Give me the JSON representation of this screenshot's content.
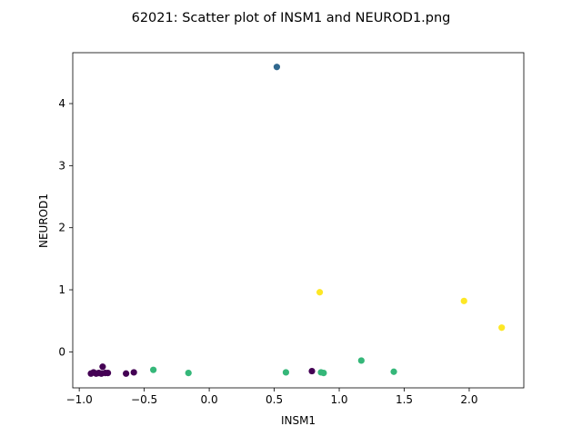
{
  "chart_data": {
    "type": "scatter",
    "title": "62021: Scatter plot of INSM1 and NEUROD1.png",
    "xlabel": "INSM1",
    "ylabel": "NEUROD1",
    "xlim": [
      -1.05,
      2.42
    ],
    "ylim": [
      -0.58,
      4.82
    ],
    "xticks": [
      -1.0,
      -0.5,
      0.0,
      0.5,
      1.0,
      1.5,
      2.0
    ],
    "xtick_labels": [
      "−1.0",
      "−0.5",
      "0.0",
      "0.5",
      "1.0",
      "1.5",
      "2.0"
    ],
    "yticks": [
      0,
      1,
      2,
      3,
      4
    ],
    "ytick_labels": [
      "0",
      "1",
      "2",
      "3",
      "4"
    ],
    "grid": false,
    "colors": {
      "purple": "#440154",
      "blue": "#31688e",
      "green": "#35b779",
      "yellow": "#fde725"
    },
    "points": [
      {
        "x": -0.91,
        "y": -0.35,
        "color": "purple"
      },
      {
        "x": -0.89,
        "y": -0.33,
        "color": "purple"
      },
      {
        "x": -0.87,
        "y": -0.35,
        "color": "purple"
      },
      {
        "x": -0.85,
        "y": -0.34,
        "color": "purple"
      },
      {
        "x": -0.83,
        "y": -0.35,
        "color": "purple"
      },
      {
        "x": -0.82,
        "y": -0.24,
        "color": "purple"
      },
      {
        "x": -0.8,
        "y": -0.34,
        "color": "purple"
      },
      {
        "x": -0.78,
        "y": -0.34,
        "color": "purple"
      },
      {
        "x": -0.64,
        "y": -0.35,
        "color": "purple"
      },
      {
        "x": -0.58,
        "y": -0.33,
        "color": "purple"
      },
      {
        "x": 0.79,
        "y": -0.31,
        "color": "purple"
      },
      {
        "x": 0.52,
        "y": 4.59,
        "color": "blue"
      },
      {
        "x": -0.43,
        "y": -0.29,
        "color": "green"
      },
      {
        "x": -0.16,
        "y": -0.34,
        "color": "green"
      },
      {
        "x": 0.59,
        "y": -0.33,
        "color": "green"
      },
      {
        "x": 0.86,
        "y": -0.33,
        "color": "green"
      },
      {
        "x": 0.88,
        "y": -0.34,
        "color": "green"
      },
      {
        "x": 1.17,
        "y": -0.14,
        "color": "green"
      },
      {
        "x": 1.42,
        "y": -0.32,
        "color": "green"
      },
      {
        "x": 0.85,
        "y": 0.96,
        "color": "yellow"
      },
      {
        "x": 1.96,
        "y": 0.82,
        "color": "yellow"
      },
      {
        "x": 2.25,
        "y": 0.39,
        "color": "yellow"
      }
    ]
  }
}
